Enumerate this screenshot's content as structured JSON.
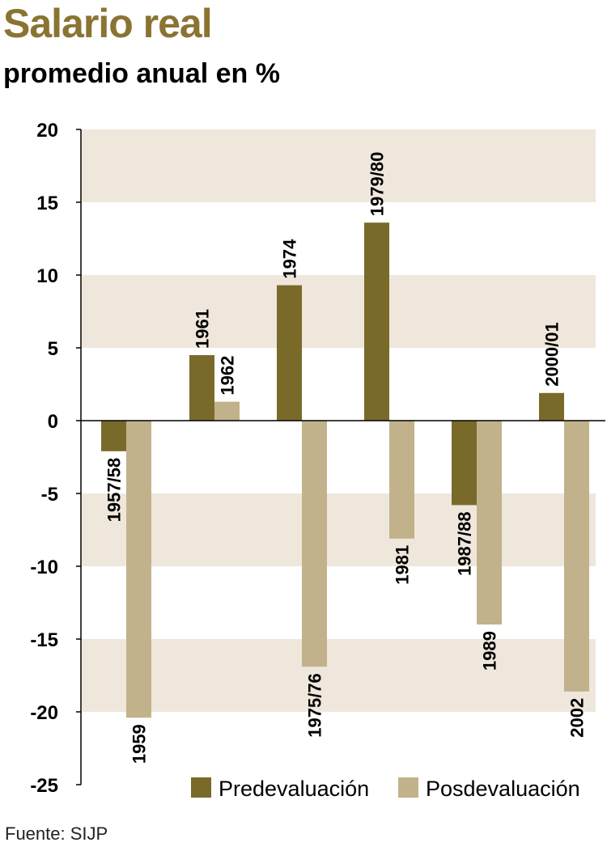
{
  "header": {
    "title": "Salario real",
    "subtitle": "promedio anual en %"
  },
  "footer": {
    "source": "Fuente: SIJP"
  },
  "colors": {
    "title": "#8b7332",
    "pre": "#7a6a2a",
    "pos": "#c2b28c",
    "band": "#efe7dc"
  },
  "chart_data": {
    "type": "bar",
    "yticks": [
      "20",
      "15",
      "10",
      "5",
      "0",
      "-5",
      "-10",
      "-15",
      "-20",
      "-25"
    ],
    "ylim": [
      -25,
      20
    ],
    "grid": "alternating bands",
    "legend_position": "bottom-right",
    "series": [
      {
        "name": "Predevaluación",
        "color": "#7a6a2a"
      },
      {
        "name": "Posdevaluación",
        "color": "#c2b28c"
      }
    ],
    "groups": [
      {
        "bars": [
          {
            "series": 0,
            "label": "1957/58",
            "value": -2.1
          },
          {
            "series": 1,
            "label": "1959",
            "value": -20.4
          }
        ]
      },
      {
        "bars": [
          {
            "series": 0,
            "label": "1961",
            "value": 4.5
          },
          {
            "series": 1,
            "label": "1962",
            "value": 1.3
          }
        ]
      },
      {
        "bars": [
          {
            "series": 0,
            "label": "1974",
            "value": 9.3
          },
          {
            "series": 1,
            "label": "1975/76",
            "value": -16.9
          }
        ]
      },
      {
        "bars": [
          {
            "series": 0,
            "label": "1979/80",
            "value": 13.6
          },
          {
            "series": 1,
            "label": "1981",
            "value": -8.1
          }
        ]
      },
      {
        "bars": [
          {
            "series": 0,
            "label": "1987/88",
            "value": -5.8
          },
          {
            "series": 1,
            "label": "1989",
            "value": -14.0
          }
        ]
      },
      {
        "bars": [
          {
            "series": 0,
            "label": "2000/01",
            "value": 1.9
          },
          {
            "series": 1,
            "label": "2002",
            "value": -18.6
          }
        ]
      }
    ]
  }
}
